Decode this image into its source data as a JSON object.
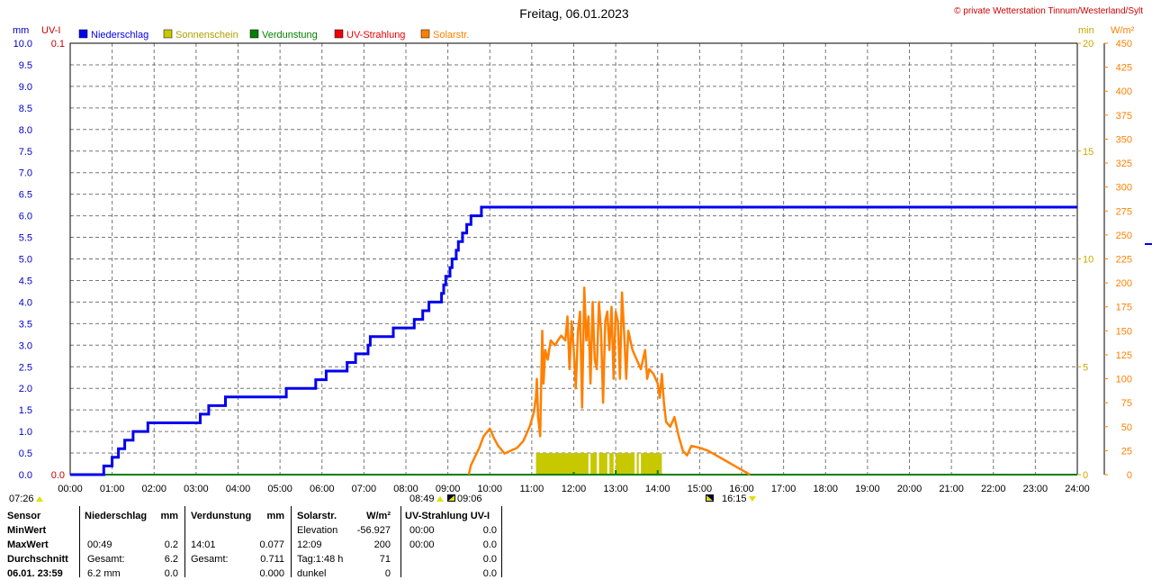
{
  "chart_data": {
    "type": "line",
    "title": "Freitag, 06.01.2023",
    "copyright": "© private Wetterstation Tinnum/Westerland/Sylt",
    "legend": [
      {
        "name": "Niederschlag",
        "color": "#0000ee"
      },
      {
        "name": "Sonnenschein",
        "color": "#c8c800"
      },
      {
        "name": "Verdunstung",
        "color": "#008000"
      },
      {
        "name": "UV-Strahlung",
        "color": "#ee0000"
      },
      {
        "name": "Solarstr.",
        "color": "#ff8000"
      }
    ],
    "axes": {
      "left_mm": {
        "unit": "mm",
        "ticks": [
          "0.0",
          "0.5",
          "1.0",
          "1.5",
          "2.0",
          "2.5",
          "3.0",
          "3.5",
          "4.0",
          "4.5",
          "5.0",
          "5.5",
          "6.0",
          "6.5",
          "7.0",
          "7.5",
          "8.0",
          "8.5",
          "9.0",
          "9.5",
          "10.0"
        ],
        "range": [
          0,
          10
        ],
        "color": "#0000cc"
      },
      "left_uv": {
        "unit": "UV-I",
        "ticks": [
          "0.0",
          "0.1"
        ],
        "range": [
          0,
          0.1
        ],
        "color": "#cc0000"
      },
      "right_min": {
        "unit": "min",
        "ticks": [
          "0",
          "5",
          "10",
          "15",
          "20"
        ],
        "range": [
          0,
          20
        ],
        "color": "#c8a800"
      },
      "right_wm2": {
        "unit": "W/m²",
        "ticks": [
          "0",
          "25",
          "50",
          "75",
          "100",
          "125",
          "150",
          "175",
          "200",
          "225",
          "250",
          "275",
          "300",
          "325",
          "350",
          "375",
          "400",
          "425",
          "450"
        ],
        "range": [
          0,
          450
        ],
        "color": "#ff8000"
      },
      "x_ticks": [
        "00:00",
        "01:00",
        "02:00",
        "03:00",
        "04:00",
        "05:00",
        "06:00",
        "07:00",
        "08:00",
        "09:00",
        "10:00",
        "11:00",
        "12:00",
        "13:00",
        "14:00",
        "15:00",
        "16:00",
        "17:00",
        "18:00",
        "19:00",
        "20:00",
        "21:00",
        "22:00",
        "23:00",
        "24:00"
      ]
    },
    "grid": true,
    "sun_markers": {
      "sunrise_civil": "07:26",
      "sunrise": "08:49",
      "sunrise_end": "09:06",
      "sunset": "16:15"
    },
    "niederschlag": {
      "unit": "mm",
      "steps": [
        [
          0.0,
          0.0
        ],
        [
          0.8,
          0.2
        ],
        [
          1.0,
          0.4
        ],
        [
          1.15,
          0.6
        ],
        [
          1.3,
          0.8
        ],
        [
          1.5,
          1.0
        ],
        [
          1.85,
          1.2
        ],
        [
          3.1,
          1.4
        ],
        [
          3.3,
          1.6
        ],
        [
          3.7,
          1.8
        ],
        [
          5.15,
          2.0
        ],
        [
          5.85,
          2.2
        ],
        [
          6.1,
          2.4
        ],
        [
          6.6,
          2.6
        ],
        [
          6.8,
          2.8
        ],
        [
          7.1,
          3.0
        ],
        [
          7.15,
          3.2
        ],
        [
          7.7,
          3.4
        ],
        [
          8.2,
          3.6
        ],
        [
          8.4,
          3.8
        ],
        [
          8.55,
          4.0
        ],
        [
          8.85,
          4.2
        ],
        [
          8.9,
          4.4
        ],
        [
          8.95,
          4.6
        ],
        [
          9.05,
          4.8
        ],
        [
          9.1,
          5.0
        ],
        [
          9.2,
          5.2
        ],
        [
          9.25,
          5.4
        ],
        [
          9.35,
          5.6
        ],
        [
          9.45,
          5.8
        ],
        [
          9.55,
          6.0
        ],
        [
          9.8,
          6.2
        ],
        [
          24.0,
          6.2
        ]
      ]
    },
    "solar": {
      "unit": "W/m²",
      "points": [
        [
          9.5,
          0
        ],
        [
          9.55,
          10
        ],
        [
          9.75,
          28
        ],
        [
          9.85,
          40
        ],
        [
          10.0,
          48
        ],
        [
          10.1,
          38
        ],
        [
          10.2,
          30
        ],
        [
          10.35,
          22
        ],
        [
          10.5,
          25
        ],
        [
          10.65,
          28
        ],
        [
          10.8,
          35
        ],
        [
          10.95,
          50
        ],
        [
          11.05,
          65
        ],
        [
          11.1,
          80
        ],
        [
          11.12,
          100
        ],
        [
          11.15,
          60
        ],
        [
          11.2,
          40
        ],
        [
          11.25,
          150
        ],
        [
          11.28,
          95
        ],
        [
          11.32,
          130
        ],
        [
          11.38,
          120
        ],
        [
          11.45,
          140
        ],
        [
          11.55,
          135
        ],
        [
          11.7,
          145
        ],
        [
          11.8,
          140
        ],
        [
          11.85,
          165
        ],
        [
          11.9,
          110
        ],
        [
          11.95,
          160
        ],
        [
          12.0,
          130
        ],
        [
          12.05,
          90
        ],
        [
          12.1,
          150
        ],
        [
          12.15,
          170
        ],
        [
          12.2,
          70
        ],
        [
          12.25,
          195
        ],
        [
          12.3,
          140
        ],
        [
          12.35,
          165
        ],
        [
          12.4,
          95
        ],
        [
          12.45,
          180
        ],
        [
          12.5,
          120
        ],
        [
          12.55,
          110
        ],
        [
          12.6,
          180
        ],
        [
          12.65,
          150
        ],
        [
          12.7,
          75
        ],
        [
          12.75,
          160
        ],
        [
          12.8,
          170
        ],
        [
          12.85,
          130
        ],
        [
          12.9,
          175
        ],
        [
          12.95,
          100
        ],
        [
          13.0,
          170
        ],
        [
          13.05,
          160
        ],
        [
          13.1,
          100
        ],
        [
          13.15,
          190
        ],
        [
          13.2,
          150
        ],
        [
          13.25,
          100
        ],
        [
          13.3,
          150
        ],
        [
          13.4,
          130
        ],
        [
          13.5,
          120
        ],
        [
          13.6,
          110
        ],
        [
          13.65,
          120
        ],
        [
          13.7,
          130
        ],
        [
          13.75,
          100
        ],
        [
          13.8,
          110
        ],
        [
          13.9,
          105
        ],
        [
          14.0,
          95
        ],
        [
          14.05,
          80
        ],
        [
          14.1,
          105
        ],
        [
          14.15,
          75
        ],
        [
          14.2,
          55
        ],
        [
          14.3,
          50
        ],
        [
          14.4,
          60
        ],
        [
          14.5,
          40
        ],
        [
          14.6,
          25
        ],
        [
          14.7,
          20
        ],
        [
          14.8,
          30
        ],
        [
          15.0,
          28
        ],
        [
          15.2,
          25
        ],
        [
          15.4,
          20
        ],
        [
          15.6,
          15
        ],
        [
          15.8,
          10
        ],
        [
          16.0,
          5
        ],
        [
          16.2,
          0
        ]
      ]
    },
    "sonnenschein": {
      "unit": "min",
      "intervals": [
        [
          11.1,
          12.35
        ],
        [
          12.4,
          12.55
        ],
        [
          12.6,
          12.8
        ],
        [
          12.85,
          12.95
        ],
        [
          13.0,
          13.45
        ],
        [
          13.5,
          13.55
        ],
        [
          13.6,
          14.1
        ]
      ],
      "level": 1.0
    },
    "verdunstung": {
      "unit": "mm",
      "level": 0.0
    }
  },
  "stats": {
    "headers": {
      "sensor": "Sensor",
      "niederschlag": "Niederschlag",
      "niederschlag_unit": "mm",
      "verdunstung": "Verdunstung",
      "verdunstung_unit": "mm",
      "solar": "Solarstr.",
      "solar_unit": "W/m²",
      "uv": "UV-Strahlung UV-I"
    },
    "rows": [
      {
        "label": "MinWert",
        "n_time": "",
        "n_val": "",
        "v_time": "",
        "v_val": "",
        "s_label": "Elevation",
        "s_val": "-56.927",
        "u_time": "00:00",
        "u_val": "0.0"
      },
      {
        "label": "MaxWert",
        "n_time": "00:49",
        "n_val": "0.2",
        "v_time": "14:01",
        "v_val": "0.077",
        "s_label": "12:09",
        "s_val": "200",
        "u_time": "00:00",
        "u_val": "0.0"
      },
      {
        "label": "Durchschnitt",
        "n_time": "Gesamt:",
        "n_val": "6.2",
        "v_time": "Gesamt:",
        "v_val": "0.711",
        "s_label": "Tag:1:48 h",
        "s_val": "71",
        "u_time": "",
        "u_val": "0.0"
      },
      {
        "label": "06.01. 23:59",
        "n_time": "6.2 mm",
        "n_val": "0.0",
        "v_time": "",
        "v_val": "0.000",
        "s_label": "dunkel",
        "s_val": "0",
        "u_time": "",
        "u_val": "0.0"
      }
    ]
  }
}
